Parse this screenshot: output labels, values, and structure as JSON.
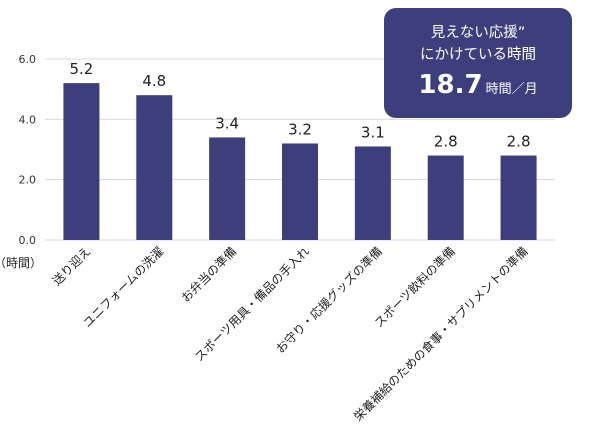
{
  "chart_data": {
    "type": "bar",
    "categories": [
      "送り迎え",
      "ユニフォームの洗濯",
      "お弁当の準備",
      "スポーツ用具・備品の手入れ",
      "お守り・応援グッズの準備",
      "スポーツ飲料の準備",
      "栄養補給のための食事・サプリメントの準備"
    ],
    "values": [
      5.2,
      4.8,
      3.4,
      3.2,
      3.1,
      2.8,
      2.8
    ],
    "value_labels": [
      "5.2",
      "4.8",
      "3.4",
      "3.2",
      "3.1",
      "2.8",
      "2.8"
    ],
    "yticks": [
      "0.0",
      "2.0",
      "4.0",
      "6.0"
    ],
    "ylim": [
      0,
      6
    ],
    "ylabel": "（時間）",
    "grid": true,
    "bar_color": "#3d3f7c",
    "grid_color": "#d9d9d9"
  },
  "summary": {
    "line1": "見えない応援”",
    "line2": "にかけている時間",
    "total": "18.7",
    "unit": "時間／月"
  }
}
